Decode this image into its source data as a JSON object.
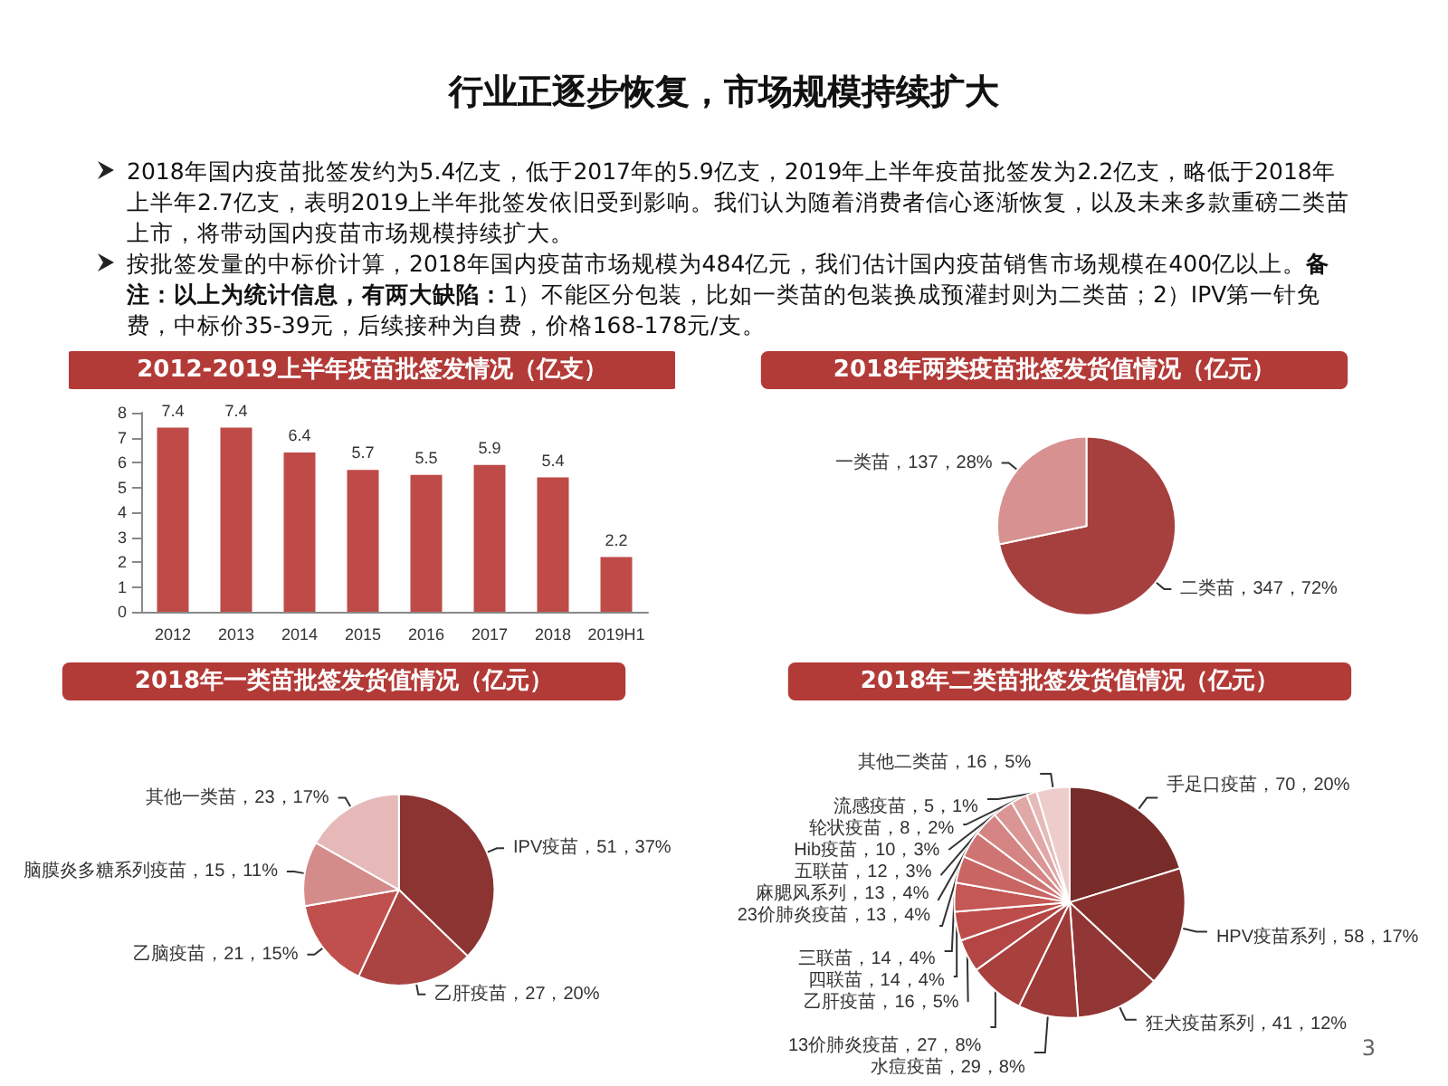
{
  "chart_data": [
    {
      "type": "other",
      "title": "行业正逐步恢复，市场规模持续扩大",
      "annotations": [
        "2018年国内疫苗批签发约为5.4亿支，低于2017年的5.9亿支，2019年上半年疫苗批签发为2.2亿支，略低于2018年上半年2.7亿支，表明2019上半年批签发依旧受到影响。我们认为随着消费者信心逐渐恢复，以及未来多款重磅二类苗上市，将带动国内疫苗市场规模持续扩大。",
        "按批签发量的中标价计算，2018年国内疫苗市场规模为484亿元，我们估计国内疫苗销售市场规模在400亿以上。",
        "备注：以上为统计信息，有两大缺陷：",
        "1）不能区分包装，比如一类苗的包装换成预灌封则为二类苗；2）IPV第一针免费，中标价35-39元，后续接种为自费，价格168-178元/支。",
        "3"
      ]
    },
    {
      "type": "bar",
      "title": "2012-2019上半年疫苗批签发情况（亿支）",
      "categories": [
        "2012",
        "2013",
        "2014",
        "2015",
        "2016",
        "2017",
        "2018",
        "2019H1"
      ],
      "values": [
        7.4,
        7.4,
        6.4,
        5.7,
        5.5,
        5.9,
        5.4,
        2.2
      ],
      "color": "#be4b48",
      "ylim": [
        0,
        8
      ],
      "yticks": [
        0,
        1,
        2,
        3,
        4,
        5,
        6,
        7,
        8
      ],
      "data_labels": true
    },
    {
      "type": "pie",
      "title": "2018年两类疫苗批签发货值情况（亿元）",
      "categories": [
        "二类苗",
        "一类苗"
      ],
      "values": [
        347,
        137
      ],
      "value_labels": [
        "347，72%",
        "137，28%"
      ],
      "colors": [
        "#a5403f",
        "#d69190"
      ]
    },
    {
      "type": "pie",
      "title": "2018年一类苗批签发货值情况（亿元）",
      "categories": [
        "IPV疫苗",
        "乙肝疫苗",
        "乙脑疫苗",
        "脑膜炎多糖系列疫苗",
        "其他一类苗"
      ],
      "values": [
        51,
        27,
        21,
        15,
        23
      ],
      "value_labels": [
        "51，37%",
        "27，20%",
        "21，15%",
        "15，11%",
        "23，17%"
      ],
      "colors": [
        "#8b3432",
        "#a94442",
        "#c0504d",
        "#d48c8b",
        "#e6b9b8"
      ]
    },
    {
      "type": "pie",
      "title": "2018年二类苗批签发货值情况（亿元）",
      "categories": [
        "手足口疫苗",
        "HPV疫苗系列",
        "狂犬疫苗系列",
        "水痘疫苗",
        "13价肺炎疫苗",
        "乙肝疫苗",
        "四联苗",
        "三联苗",
        "23价肺炎疫苗",
        "麻腮风系列",
        "五联苗",
        "Hib疫苗",
        "轮状疫苗",
        "流感疫苗",
        "其他二类苗"
      ],
      "values": [
        70,
        58,
        41,
        29,
        27,
        16,
        14,
        14,
        13,
        13,
        12,
        10,
        8,
        5,
        16
      ],
      "value_labels": [
        "70，20%",
        "58，17%",
        "41，12%",
        "29，8%",
        "27，8%",
        "16，5%",
        "14，4%",
        "14，4%",
        "13，4%",
        "13，4%",
        "12，3%",
        "10，3%",
        "8，2%",
        "5，1%",
        "16，5%"
      ],
      "colors": [
        "#772c2a",
        "#87312f",
        "#923635",
        "#9d3b39",
        "#a8403e",
        "#b34644",
        "#bd4d4a",
        "#c45855",
        "#c96663",
        "#ce7573",
        "#d48583",
        "#da9695",
        "#e0a8a7",
        "#e6bab9",
        "#eccdcc"
      ]
    }
  ]
}
